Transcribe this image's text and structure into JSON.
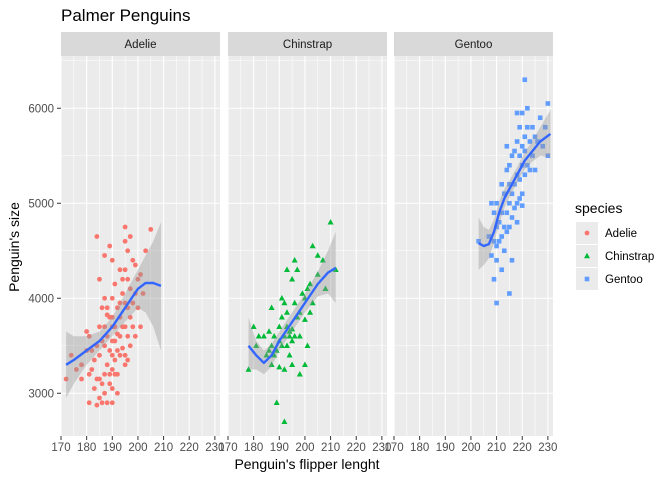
{
  "chart_data": {
    "type": "scatter",
    "title": "Palmer Penguins",
    "xlabel": "Penguin's flipper lenght",
    "ylabel": "Penguin's size",
    "xlim": [
      170,
      232
    ],
    "ylim": [
      2550,
      6550
    ],
    "x_ticks": [
      170,
      180,
      190,
      200,
      210,
      220,
      230
    ],
    "y_ticks": [
      3000,
      4000,
      5000,
      6000
    ],
    "facets": [
      "Adelie",
      "Chinstrap",
      "Gentoo"
    ],
    "legend": {
      "title": "species",
      "position": "right",
      "entries": [
        "Adelie",
        "Chinstrap",
        "Gentoo"
      ]
    },
    "grid": true,
    "colors": {
      "Adelie": "#F8766D",
      "Chinstrap": "#00BA38",
      "Gentoo": "#619CFF",
      "smooth": "#3366FF",
      "band": "#999999"
    },
    "series": [
      {
        "name": "Adelie",
        "shape": "circle",
        "points": [
          [
            172,
            3150
          ],
          [
            174,
            3400
          ],
          [
            176,
            3250
          ],
          [
            178,
            3300
          ],
          [
            180,
            3650
          ],
          [
            181,
            3600
          ],
          [
            181,
            3200
          ],
          [
            181,
            2900
          ],
          [
            182,
            3450
          ],
          [
            182,
            3250
          ],
          [
            183,
            3350
          ],
          [
            183,
            3050
          ],
          [
            184,
            3500
          ],
          [
            184,
            3150
          ],
          [
            184,
            2875
          ],
          [
            185,
            3700
          ],
          [
            185,
            3400
          ],
          [
            185,
            3150
          ],
          [
            185,
            2950
          ],
          [
            186,
            3900
          ],
          [
            186,
            3550
          ],
          [
            186,
            3100
          ],
          [
            186,
            2900
          ],
          [
            187,
            4000
          ],
          [
            187,
            4450
          ],
          [
            187,
            3700
          ],
          [
            187,
            3500
          ],
          [
            187,
            3200
          ],
          [
            187,
            3000
          ],
          [
            188,
            3600
          ],
          [
            188,
            3300
          ],
          [
            188,
            2900
          ],
          [
            188,
            3900
          ],
          [
            189,
            3800
          ],
          [
            189,
            3450
          ],
          [
            189,
            3200
          ],
          [
            189,
            3100
          ],
          [
            190,
            4400
          ],
          [
            190,
            4000
          ],
          [
            190,
            3800
          ],
          [
            190,
            3700
          ],
          [
            190,
            3550
          ],
          [
            190,
            3400
          ],
          [
            190,
            3250
          ],
          [
            190,
            3050
          ],
          [
            190,
            2900
          ],
          [
            191,
            4150
          ],
          [
            191,
            3700
          ],
          [
            191,
            3550
          ],
          [
            191,
            3350
          ],
          [
            191,
            3200
          ],
          [
            192,
            3900
          ],
          [
            192,
            3625
          ],
          [
            192,
            3450
          ],
          [
            192,
            3200
          ],
          [
            193,
            4300
          ],
          [
            193,
            3950
          ],
          [
            193,
            3800
          ],
          [
            193,
            3600
          ],
          [
            193,
            3400
          ],
          [
            194,
            4200
          ],
          [
            194,
            4050
          ],
          [
            194,
            3700
          ],
          [
            194,
            3475
          ],
          [
            195,
            4600
          ],
          [
            195,
            4300
          ],
          [
            195,
            3950
          ],
          [
            195,
            3700
          ],
          [
            195,
            3400
          ],
          [
            195,
            3300
          ],
          [
            196,
            4500
          ],
          [
            196,
            4200
          ],
          [
            196,
            3900
          ],
          [
            196,
            3600
          ],
          [
            196,
            3350
          ],
          [
            197,
            4650
          ],
          [
            197,
            4100
          ],
          [
            197,
            3800
          ],
          [
            197,
            3500
          ],
          [
            198,
            4400
          ],
          [
            198,
            3950
          ],
          [
            198,
            3700
          ],
          [
            199,
            4350
          ],
          [
            199,
            4050
          ],
          [
            199,
            3600
          ],
          [
            200,
            4200
          ],
          [
            200,
            3900
          ],
          [
            201,
            4250
          ],
          [
            201,
            3700
          ],
          [
            202,
            4050
          ],
          [
            203,
            4500
          ],
          [
            205,
            4725
          ],
          [
            184,
            4650
          ],
          [
            189,
            4550
          ],
          [
            180,
            3450
          ],
          [
            178,
            3150
          ],
          [
            185,
            4200
          ],
          [
            195,
            4750
          ],
          [
            192,
            3000
          ],
          [
            188,
            3825
          ]
        ],
        "smooth": [
          [
            172,
            3300
          ],
          [
            175,
            3350
          ],
          [
            180,
            3450
          ],
          [
            185,
            3550
          ],
          [
            190,
            3700
          ],
          [
            195,
            3900
          ],
          [
            200,
            4100
          ],
          [
            203,
            4160
          ],
          [
            206,
            4160
          ],
          [
            209,
            4130
          ]
        ],
        "band": [
          [
            172,
            2950,
            3650
          ],
          [
            175,
            3100,
            3600
          ],
          [
            180,
            3300,
            3600
          ],
          [
            185,
            3450,
            3650
          ],
          [
            190,
            3600,
            3800
          ],
          [
            195,
            3750,
            4050
          ],
          [
            200,
            3900,
            4300
          ],
          [
            203,
            3850,
            4450
          ],
          [
            206,
            3700,
            4600
          ],
          [
            209,
            3450,
            4800
          ]
        ]
      },
      {
        "name": "Chinstrap",
        "shape": "triangle",
        "points": [
          [
            178,
            3250
          ],
          [
            180,
            3700
          ],
          [
            181,
            3500
          ],
          [
            182,
            3600
          ],
          [
            184,
            3600
          ],
          [
            185,
            3400
          ],
          [
            186,
            3650
          ],
          [
            187,
            3500
          ],
          [
            187,
            3300
          ],
          [
            187,
            3900
          ],
          [
            188,
            3600
          ],
          [
            188,
            3400
          ],
          [
            189,
            3450
          ],
          [
            190,
            3550
          ],
          [
            190,
            3700
          ],
          [
            190,
            3275
          ],
          [
            191,
            3800
          ],
          [
            191,
            3500
          ],
          [
            191,
            4000
          ],
          [
            192,
            3950
          ],
          [
            192,
            3600
          ],
          [
            192,
            3250
          ],
          [
            193,
            3700
          ],
          [
            193,
            3500
          ],
          [
            193,
            4300
          ],
          [
            194,
            3400
          ],
          [
            194,
            3650
          ],
          [
            195,
            3300
          ],
          [
            195,
            3550
          ],
          [
            195,
            3675
          ],
          [
            195,
            4200
          ],
          [
            196,
            3600
          ],
          [
            196,
            3950
          ],
          [
            197,
            3800
          ],
          [
            197,
            4300
          ],
          [
            198,
            3600
          ],
          [
            198,
            3850
          ],
          [
            199,
            4050
          ],
          [
            200,
            3775
          ],
          [
            200,
            4000
          ],
          [
            201,
            4100
          ],
          [
            201,
            3500
          ],
          [
            202,
            4150
          ],
          [
            202,
            3850
          ],
          [
            203,
            4550
          ],
          [
            203,
            3950
          ],
          [
            205,
            4250
          ],
          [
            205,
            4450
          ],
          [
            207,
            4400
          ],
          [
            208,
            4100
          ],
          [
            210,
            4800
          ],
          [
            212,
            4300
          ],
          [
            196,
            4400
          ],
          [
            189,
            2900
          ],
          [
            192,
            2700
          ],
          [
            198,
            3200
          ],
          [
            200,
            3300
          ],
          [
            194,
            3600
          ],
          [
            186,
            3450
          ],
          [
            193,
            3850
          ]
        ],
        "smooth": [
          [
            178,
            3500
          ],
          [
            181,
            3400
          ],
          [
            184,
            3320
          ],
          [
            187,
            3400
          ],
          [
            190,
            3550
          ],
          [
            195,
            3750
          ],
          [
            200,
            3950
          ],
          [
            205,
            4150
          ],
          [
            209,
            4270
          ],
          [
            212,
            4320
          ]
        ],
        "band": [
          [
            178,
            3250,
            3800
          ],
          [
            181,
            3250,
            3550
          ],
          [
            184,
            3200,
            3450
          ],
          [
            187,
            3280,
            3520
          ],
          [
            190,
            3450,
            3650
          ],
          [
            195,
            3650,
            3850
          ],
          [
            200,
            3850,
            4050
          ],
          [
            205,
            4020,
            4280
          ],
          [
            209,
            4050,
            4500
          ],
          [
            212,
            3950,
            4700
          ]
        ]
      },
      {
        "name": "Gentoo",
        "shape": "square",
        "points": [
          [
            203,
            4600
          ],
          [
            207,
            4650
          ],
          [
            208,
            4450
          ],
          [
            209,
            4600
          ],
          [
            209,
            4200
          ],
          [
            209,
            4900
          ],
          [
            210,
            4550
          ],
          [
            210,
            4750
          ],
          [
            210,
            4400
          ],
          [
            210,
            5000
          ],
          [
            210,
            3950
          ],
          [
            211,
            4800
          ],
          [
            211,
            4600
          ],
          [
            212,
            4900
          ],
          [
            212,
            4650
          ],
          [
            212,
            5200
          ],
          [
            213,
            4750
          ],
          [
            213,
            4500
          ],
          [
            213,
            5100
          ],
          [
            214,
            5350
          ],
          [
            214,
            4900
          ],
          [
            214,
            4700
          ],
          [
            214,
            5600
          ],
          [
            215,
            5000
          ],
          [
            215,
            5400
          ],
          [
            215,
            4750
          ],
          [
            215,
            5200
          ],
          [
            216,
            5100
          ],
          [
            216,
            4850
          ],
          [
            216,
            5500
          ],
          [
            216,
            4400
          ],
          [
            217,
            5200
          ],
          [
            217,
            4950
          ],
          [
            217,
            5550
          ],
          [
            218,
            5300
          ],
          [
            218,
            5000
          ],
          [
            218,
            4800
          ],
          [
            218,
            5650
          ],
          [
            219,
            5250
          ],
          [
            219,
            5500
          ],
          [
            219,
            5050
          ],
          [
            219,
            5800
          ],
          [
            220,
            5400
          ],
          [
            220,
            5600
          ],
          [
            220,
            5100
          ],
          [
            220,
            5950
          ],
          [
            220,
            4975
          ],
          [
            221,
            5300
          ],
          [
            221,
            5700
          ],
          [
            221,
            5550
          ],
          [
            222,
            5800
          ],
          [
            222,
            5400
          ],
          [
            222,
            6000
          ],
          [
            223,
            5650
          ],
          [
            223,
            5350
          ],
          [
            224,
            5500
          ],
          [
            224,
            5800
          ],
          [
            225,
            5700
          ],
          [
            225,
            5350
          ],
          [
            226,
            5650
          ],
          [
            227,
            5900
          ],
          [
            228,
            5600
          ],
          [
            229,
            5800
          ],
          [
            230,
            6050
          ],
          [
            230,
            5500
          ],
          [
            221,
            6300
          ],
          [
            215,
            4050
          ],
          [
            212,
            4300
          ],
          [
            208,
            5000
          ],
          [
            218,
            5950
          ]
        ],
        "smooth": [
          [
            203,
            4580
          ],
          [
            205,
            4550
          ],
          [
            207,
            4570
          ],
          [
            209,
            4700
          ],
          [
            211,
            4900
          ],
          [
            213,
            5050
          ],
          [
            215,
            5150
          ],
          [
            218,
            5300
          ],
          [
            221,
            5450
          ],
          [
            224,
            5550
          ],
          [
            227,
            5650
          ],
          [
            231,
            5730
          ]
        ],
        "band": [
          [
            203,
            4300,
            4850
          ],
          [
            205,
            4350,
            4750
          ],
          [
            207,
            4420,
            4720
          ],
          [
            209,
            4580,
            4830
          ],
          [
            211,
            4780,
            5020
          ],
          [
            213,
            4950,
            5150
          ],
          [
            215,
            5060,
            5240
          ],
          [
            218,
            5220,
            5380
          ],
          [
            221,
            5360,
            5540
          ],
          [
            224,
            5440,
            5660
          ],
          [
            227,
            5500,
            5800
          ],
          [
            231,
            5480,
            5980
          ]
        ]
      }
    ]
  }
}
